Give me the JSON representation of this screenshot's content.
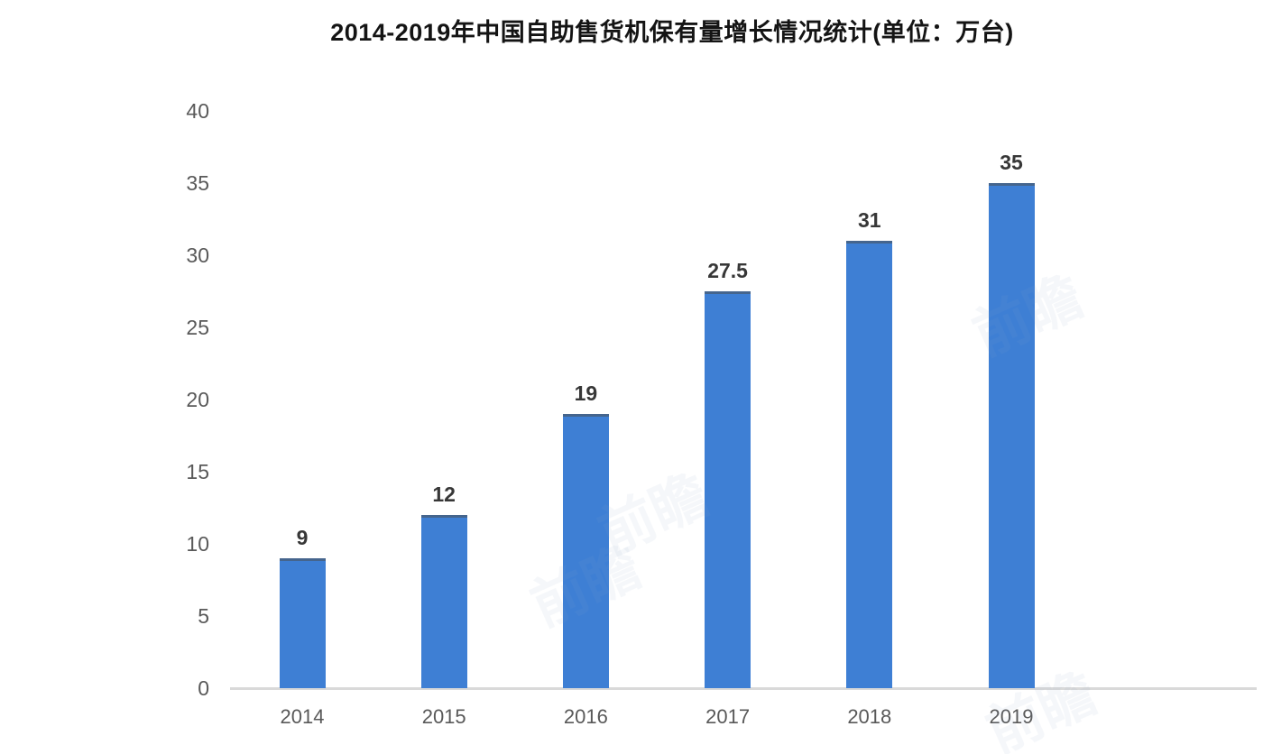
{
  "title": "2014-2019年中国自助售货机保有量增长情况统计(单位：万台)",
  "watermark_text": "前瞻",
  "chart_data": {
    "type": "bar",
    "title": "2014-2019年中国自助售货机保有量增长情况统计(单位：万台)",
    "categories": [
      "2014",
      "2015",
      "2016",
      "2017",
      "2018",
      "2019"
    ],
    "values": [
      9,
      12,
      19,
      27.5,
      31,
      35
    ],
    "value_labels": [
      "9",
      "12",
      "19",
      "27.5",
      "31",
      "35"
    ],
    "unit": "万台",
    "xlabel": "",
    "ylabel": "",
    "ylim": [
      0,
      40
    ],
    "yticks": [
      0,
      5,
      10,
      15,
      20,
      25,
      30,
      35,
      40
    ],
    "grid": false,
    "legend": false,
    "colors": {
      "bar": "#3E7FD4",
      "bar_top_edge": "#485C76",
      "axis_line": "#D9D9D9",
      "tick_label": "#595959",
      "value_label": "#373737",
      "title": "#141414"
    }
  }
}
